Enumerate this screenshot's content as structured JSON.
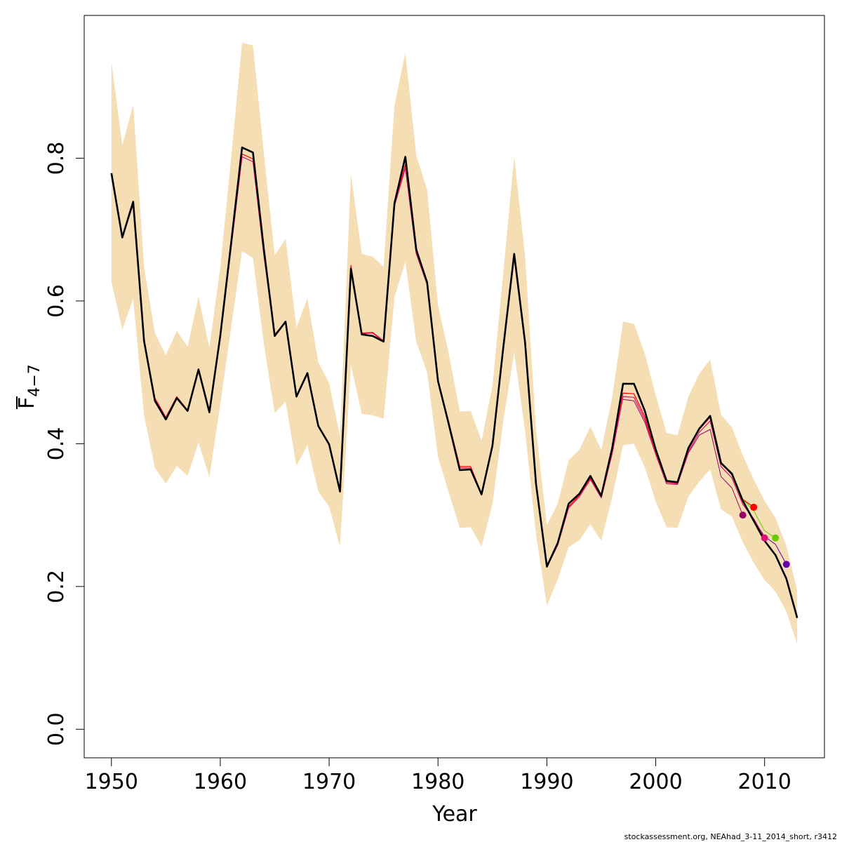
{
  "chart_data": {
    "type": "line",
    "xlabel": "Year",
    "ylabel_main": "F",
    "ylabel_sub": "4−7",
    "xlim": [
      1947.5,
      2015.5
    ],
    "ylim": [
      -0.04,
      1.0
    ],
    "x_ticks": [
      1950,
      1960,
      1970,
      1980,
      1990,
      2000,
      2010
    ],
    "x_tick_labels": [
      "1950",
      "1960",
      "1970",
      "1980",
      "1990",
      "2000",
      "2010"
    ],
    "y_ticks": [
      0.0,
      0.2,
      0.4,
      0.6,
      0.8
    ],
    "y_tick_labels": [
      "0.0",
      "0.2",
      "0.4",
      "0.6",
      "0.8"
    ],
    "band_color": "#f5deb3",
    "band": {
      "years": [
        1950,
        1951,
        1952,
        1953,
        1954,
        1955,
        1956,
        1957,
        1958,
        1959,
        1960,
        1961,
        1962,
        1963,
        1964,
        1965,
        1966,
        1967,
        1968,
        1969,
        1970,
        1971,
        1972,
        1973,
        1974,
        1975,
        1976,
        1977,
        1978,
        1979,
        1980,
        1981,
        1982,
        1983,
        1984,
        1985,
        1986,
        1987,
        1988,
        1989,
        1990,
        1991,
        1992,
        1993,
        1994,
        1995,
        1996,
        1997,
        1998,
        1999,
        2000,
        2001,
        2002,
        2003,
        2004,
        2005,
        2006,
        2007,
        2008,
        2009,
        2010,
        2011,
        2012,
        2013
      ],
      "lower": [
        0.627,
        0.56,
        0.603,
        0.44,
        0.366,
        0.344,
        0.369,
        0.355,
        0.402,
        0.353,
        0.455,
        0.563,
        0.67,
        0.66,
        0.54,
        0.443,
        0.459,
        0.369,
        0.398,
        0.333,
        0.312,
        0.256,
        0.51,
        0.442,
        0.44,
        0.435,
        0.605,
        0.655,
        0.543,
        0.5,
        0.382,
        0.331,
        0.282,
        0.283,
        0.256,
        0.315,
        0.432,
        0.528,
        0.418,
        0.273,
        0.173,
        0.21,
        0.255,
        0.265,
        0.287,
        0.264,
        0.325,
        0.398,
        0.4,
        0.367,
        0.319,
        0.283,
        0.282,
        0.326,
        0.347,
        0.364,
        0.308,
        0.298,
        0.262,
        0.233,
        0.209,
        0.193,
        0.165,
        0.119
      ],
      "upper": [
        0.935,
        0.818,
        0.875,
        0.648,
        0.555,
        0.524,
        0.558,
        0.536,
        0.606,
        0.535,
        0.647,
        0.8,
        0.962,
        0.958,
        0.807,
        0.664,
        0.687,
        0.563,
        0.604,
        0.514,
        0.485,
        0.41,
        0.778,
        0.666,
        0.662,
        0.648,
        0.874,
        0.948,
        0.804,
        0.756,
        0.594,
        0.526,
        0.445,
        0.446,
        0.404,
        0.481,
        0.64,
        0.802,
        0.663,
        0.42,
        0.286,
        0.316,
        0.377,
        0.392,
        0.424,
        0.391,
        0.465,
        0.571,
        0.568,
        0.526,
        0.468,
        0.415,
        0.412,
        0.466,
        0.498,
        0.518,
        0.441,
        0.423,
        0.384,
        0.35,
        0.32,
        0.296,
        0.257,
        0.194
      ]
    },
    "series": [
      {
        "color": "#000000",
        "width": 2.6,
        "x": [
          1950,
          1951,
          1952,
          1953,
          1954,
          1955,
          1956,
          1957,
          1958,
          1959,
          1960,
          1961,
          1962,
          1963,
          1964,
          1965,
          1966,
          1967,
          1968,
          1969,
          1970,
          1971,
          1972,
          1973,
          1974,
          1975,
          1976,
          1977,
          1978,
          1979,
          1980,
          1981,
          1982,
          1983,
          1984,
          1985,
          1986,
          1987,
          1988,
          1989,
          1990,
          1991,
          1992,
          1993,
          1994,
          1995,
          1996,
          1997,
          1998,
          1999,
          2000,
          2001,
          2002,
          2003,
          2004,
          2005,
          2006,
          2007,
          2008,
          2009,
          2010,
          2011,
          2012,
          2013
        ],
        "y": [
          0.779,
          0.689,
          0.739,
          0.544,
          0.46,
          0.434,
          0.464,
          0.446,
          0.504,
          0.444,
          0.551,
          0.681,
          0.815,
          0.808,
          0.673,
          0.551,
          0.571,
          0.466,
          0.499,
          0.425,
          0.399,
          0.333,
          0.645,
          0.553,
          0.551,
          0.543,
          0.737,
          0.802,
          0.672,
          0.626,
          0.488,
          0.427,
          0.363,
          0.364,
          0.329,
          0.397,
          0.535,
          0.666,
          0.542,
          0.344,
          0.228,
          0.261,
          0.316,
          0.33,
          0.355,
          0.327,
          0.394,
          0.484,
          0.484,
          0.446,
          0.392,
          0.348,
          0.346,
          0.394,
          0.421,
          0.439,
          0.373,
          0.358,
          0.32,
          0.292,
          0.264,
          0.244,
          0.211,
          0.156
        ]
      },
      {
        "color": "#ff0000",
        "width": 1.2,
        "x": [
          1950,
          1951,
          1952,
          1953,
          1954,
          1955,
          1956,
          1957,
          1958,
          1959,
          1960,
          1961,
          1962,
          1963,
          1964,
          1965,
          1966,
          1967,
          1968,
          1969,
          1970,
          1971,
          1972,
          1973,
          1974,
          1975,
          1976,
          1977,
          1978,
          1979,
          1980,
          1981,
          1982,
          1983,
          1984,
          1985,
          1986,
          1987,
          1988,
          1989,
          1990,
          1991,
          1992,
          1993,
          1994,
          1995,
          1996,
          1997,
          1998,
          1999,
          2000,
          2001,
          2002,
          2003,
          2004,
          2005,
          2006,
          2007,
          2008,
          2009
        ],
        "y": [
          0.776,
          0.69,
          0.736,
          0.546,
          0.464,
          0.437,
          0.466,
          0.447,
          0.505,
          0.446,
          0.548,
          0.676,
          0.806,
          0.799,
          0.666,
          0.553,
          0.571,
          0.467,
          0.499,
          0.425,
          0.399,
          0.333,
          0.65,
          0.555,
          0.556,
          0.544,
          0.735,
          0.791,
          0.668,
          0.625,
          0.489,
          0.43,
          0.368,
          0.368,
          0.33,
          0.398,
          0.534,
          0.662,
          0.54,
          0.346,
          0.229,
          0.26,
          0.312,
          0.328,
          0.352,
          0.326,
          0.388,
          0.471,
          0.47,
          0.438,
          0.388,
          0.346,
          0.345,
          0.392,
          0.42,
          0.437,
          0.372,
          0.357,
          0.322,
          0.311
        ]
      },
      {
        "color": "#dd1177",
        "width": 1.2,
        "x": [
          1950,
          1951,
          1952,
          1953,
          1954,
          1955,
          1956,
          1957,
          1958,
          1959,
          1960,
          1961,
          1962,
          1963,
          1964,
          1965,
          1966,
          1967,
          1968,
          1969,
          1970,
          1971,
          1972,
          1973,
          1974,
          1975,
          1976,
          1977,
          1978,
          1979,
          1980,
          1981,
          1982,
          1983,
          1984,
          1985,
          1986,
          1987,
          1988,
          1989,
          1990,
          1991,
          1992,
          1993,
          1994,
          1995,
          1996,
          1997,
          1998,
          1999,
          2000,
          2001,
          2002,
          2003,
          2004,
          2005,
          2006,
          2007,
          2008,
          2009,
          2010
        ],
        "y": [
          0.775,
          0.69,
          0.735,
          0.546,
          0.463,
          0.436,
          0.465,
          0.447,
          0.505,
          0.446,
          0.547,
          0.674,
          0.802,
          0.795,
          0.664,
          0.552,
          0.57,
          0.466,
          0.498,
          0.424,
          0.398,
          0.332,
          0.648,
          0.554,
          0.555,
          0.543,
          0.733,
          0.786,
          0.666,
          0.623,
          0.487,
          0.428,
          0.366,
          0.366,
          0.329,
          0.396,
          0.532,
          0.66,
          0.538,
          0.344,
          0.227,
          0.258,
          0.31,
          0.326,
          0.35,
          0.324,
          0.386,
          0.466,
          0.465,
          0.434,
          0.385,
          0.344,
          0.344,
          0.389,
          0.416,
          0.432,
          0.368,
          0.352,
          0.315,
          0.295,
          0.268
        ]
      },
      {
        "color": "#66cc00",
        "width": 1.0,
        "x": [
          2005,
          2006,
          2007,
          2008,
          2009,
          2010,
          2011
        ],
        "y": [
          0.438,
          0.374,
          0.358,
          0.322,
          0.306,
          0.278,
          0.268
        ]
      },
      {
        "color": "#6600aa",
        "width": 1.0,
        "x": [
          2004,
          2005,
          2006,
          2007,
          2008,
          2009,
          2010,
          2011,
          2012
        ],
        "y": [
          0.42,
          0.438,
          0.373,
          0.356,
          0.32,
          0.293,
          0.27,
          0.259,
          0.231
        ]
      },
      {
        "color": "#990066",
        "width": 1.0,
        "x": [
          1997,
          1998,
          1999,
          2000,
          2001,
          2002,
          2003,
          2004,
          2005,
          2006,
          2007,
          2008
        ],
        "y": [
          0.462,
          0.46,
          0.43,
          0.385,
          0.344,
          0.343,
          0.387,
          0.412,
          0.42,
          0.354,
          0.338,
          0.3
        ]
      }
    ],
    "terminal_points": [
      {
        "x": 2008,
        "y": 0.3,
        "color": "#990066"
      },
      {
        "x": 2009,
        "y": 0.311,
        "color": "#ff0000"
      },
      {
        "x": 2010,
        "y": 0.268,
        "color": "#dd1177"
      },
      {
        "x": 2011,
        "y": 0.268,
        "color": "#66cc00"
      },
      {
        "x": 2012,
        "y": 0.231,
        "color": "#6600aa"
      }
    ],
    "footer": "stockassessment.org, NEAhad_3-11_2014_short, r3412"
  }
}
